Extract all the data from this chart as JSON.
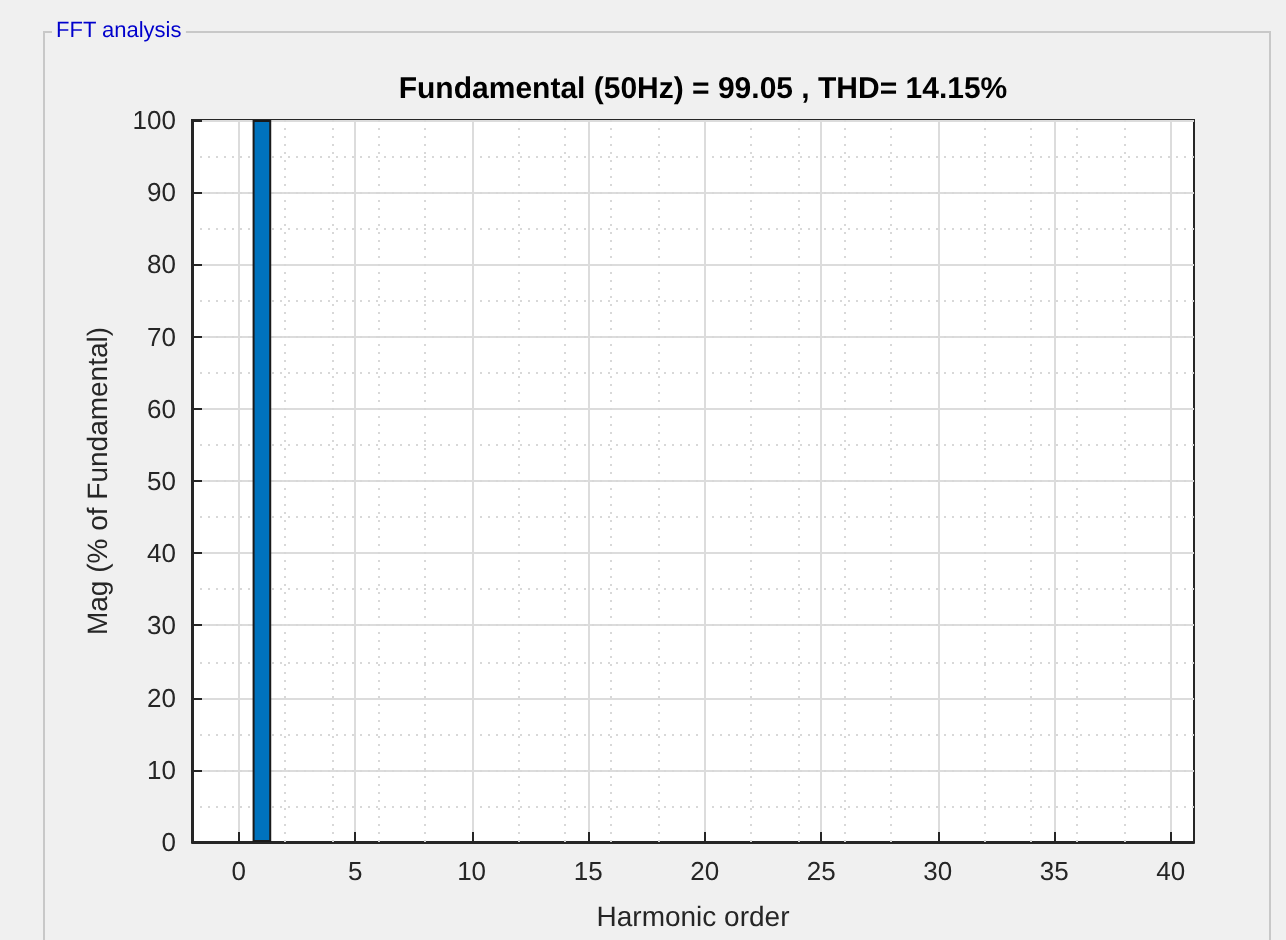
{
  "chart_data": {
    "type": "bar",
    "title": "Fundamental (50Hz) = 99.05 , THD= 14.15%",
    "xlabel": "Harmonic order",
    "ylabel": "Mag (% of Fundamental)",
    "annotations": [
      "FFT analysis"
    ],
    "x": [
      1
    ],
    "series": [
      {
        "color": "#0072bd",
        "values": [
          100
        ]
      }
    ],
    "xlim": [
      -2,
      41
    ],
    "xticks": [
      0,
      5,
      10,
      15,
      20,
      25,
      30,
      35,
      40
    ],
    "ylim": [
      0,
      100
    ],
    "yticks": [
      0,
      10,
      20,
      30,
      40,
      50,
      60,
      70,
      80,
      90,
      100
    ],
    "grid": true
  }
}
